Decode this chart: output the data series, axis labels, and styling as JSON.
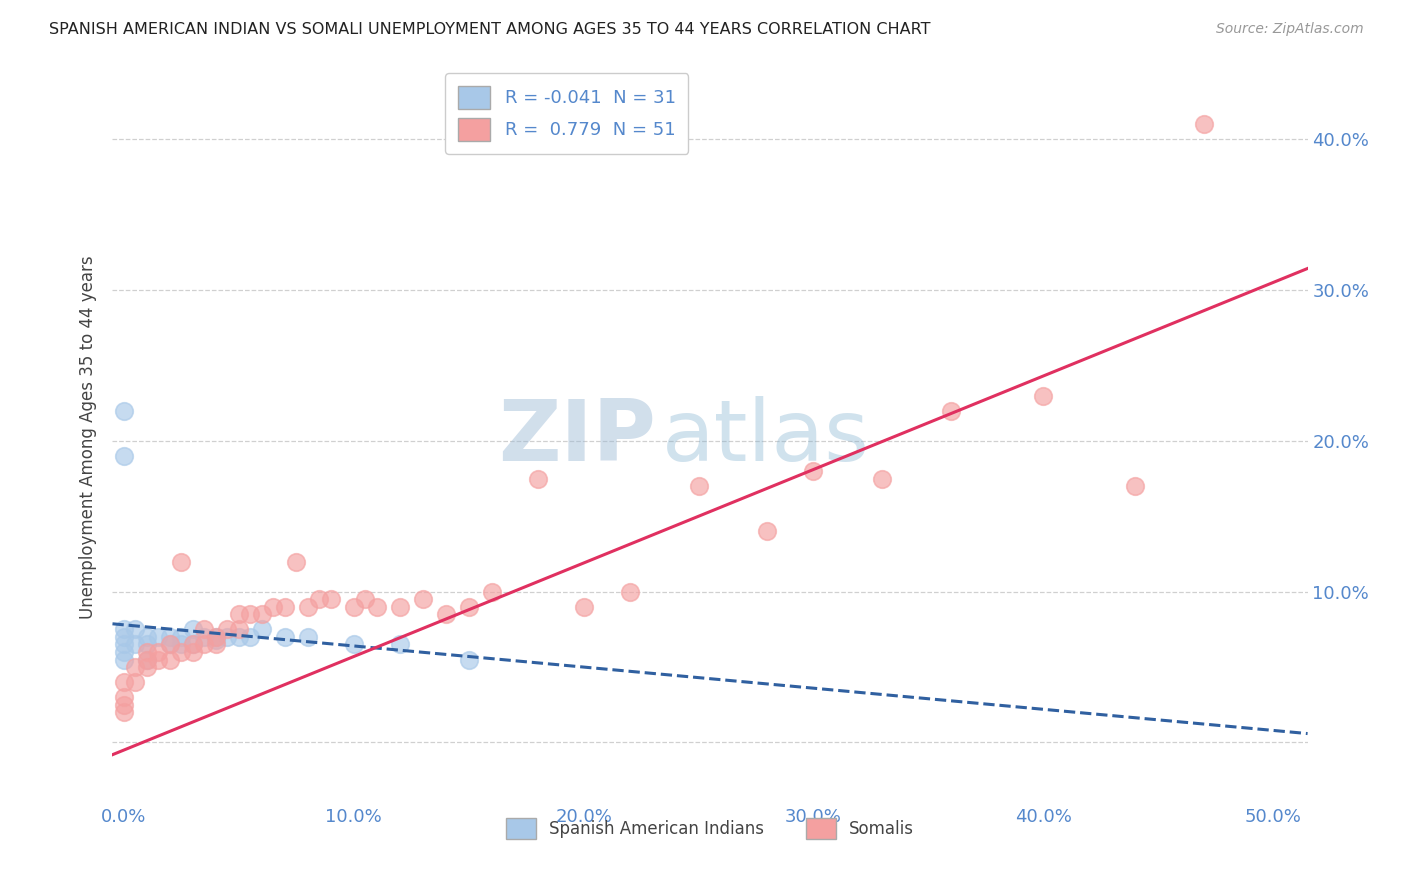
{
  "title": "SPANISH AMERICAN INDIAN VS SOMALI UNEMPLOYMENT AMONG AGES 35 TO 44 YEARS CORRELATION CHART",
  "source": "Source: ZipAtlas.com",
  "ylabel": "Unemployment Among Ages 35 to 44 years",
  "xmin": -0.005,
  "xmax": 0.515,
  "ymin": -0.04,
  "ymax": 0.445,
  "xticks": [
    0.0,
    0.1,
    0.2,
    0.3,
    0.4,
    0.5
  ],
  "yticks": [
    0.0,
    0.1,
    0.2,
    0.3,
    0.4
  ],
  "ytick_labels": [
    "",
    "10.0%",
    "20.0%",
    "30.0%",
    "40.0%"
  ],
  "xtick_labels": [
    "0.0%",
    "10.0%",
    "20.0%",
    "30.0%",
    "40.0%",
    "50.0%"
  ],
  "legend_r1": "R = -0.041  N = 31",
  "legend_r2": "R =  0.779  N = 51",
  "legend_label1": "Spanish American Indians",
  "legend_label2": "Somalis",
  "blue_color": "#a8c8e8",
  "pink_color": "#f4a0a0",
  "blue_line_color": "#3060a0",
  "pink_line_color": "#e03060",
  "watermark_zip": "ZIP",
  "watermark_atlas": "atlas",
  "blue_dots_x": [
    0.0,
    0.0,
    0.0,
    0.0,
    0.0,
    0.0,
    0.0,
    0.005,
    0.005,
    0.01,
    0.01,
    0.01,
    0.015,
    0.02,
    0.02,
    0.025,
    0.025,
    0.03,
    0.03,
    0.035,
    0.04,
    0.04,
    0.045,
    0.05,
    0.055,
    0.06,
    0.07,
    0.08,
    0.1,
    0.12,
    0.15
  ],
  "blue_dots_y": [
    0.22,
    0.19,
    0.075,
    0.07,
    0.065,
    0.06,
    0.055,
    0.075,
    0.065,
    0.07,
    0.065,
    0.055,
    0.07,
    0.07,
    0.065,
    0.07,
    0.065,
    0.075,
    0.065,
    0.07,
    0.07,
    0.068,
    0.07,
    0.07,
    0.07,
    0.075,
    0.07,
    0.07,
    0.065,
    0.065,
    0.055
  ],
  "pink_dots_x": [
    0.0,
    0.0,
    0.0,
    0.0,
    0.005,
    0.005,
    0.01,
    0.01,
    0.01,
    0.015,
    0.015,
    0.02,
    0.02,
    0.025,
    0.025,
    0.03,
    0.03,
    0.035,
    0.035,
    0.04,
    0.04,
    0.045,
    0.05,
    0.05,
    0.055,
    0.06,
    0.065,
    0.07,
    0.075,
    0.08,
    0.085,
    0.09,
    0.1,
    0.105,
    0.11,
    0.12,
    0.13,
    0.14,
    0.15,
    0.16,
    0.18,
    0.2,
    0.22,
    0.25,
    0.28,
    0.3,
    0.33,
    0.36,
    0.4,
    0.44,
    0.47
  ],
  "pink_dots_y": [
    0.02,
    0.025,
    0.03,
    0.04,
    0.04,
    0.05,
    0.05,
    0.055,
    0.06,
    0.055,
    0.06,
    0.055,
    0.065,
    0.06,
    0.12,
    0.06,
    0.065,
    0.065,
    0.075,
    0.065,
    0.07,
    0.075,
    0.075,
    0.085,
    0.085,
    0.085,
    0.09,
    0.09,
    0.12,
    0.09,
    0.095,
    0.095,
    0.09,
    0.095,
    0.09,
    0.09,
    0.095,
    0.085,
    0.09,
    0.1,
    0.175,
    0.09,
    0.1,
    0.17,
    0.14,
    0.18,
    0.175,
    0.22,
    0.23,
    0.17,
    0.41
  ],
  "background_color": "#ffffff",
  "grid_color": "#d0d0d0"
}
